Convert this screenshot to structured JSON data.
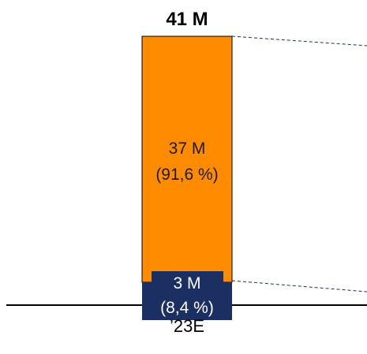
{
  "chart_data": {
    "type": "bar",
    "stacked": true,
    "categories": [
      "’23E"
    ],
    "series": [
      {
        "values": [
          3
        ],
        "value_label": "3 M",
        "share_label": "(8,4 %)",
        "color": "#1b2f63",
        "text_color": "#ffffff"
      },
      {
        "values": [
          37
        ],
        "value_label": "37 M",
        "share_label": "(91,6 %)",
        "color": "#ff8c00",
        "text_color": "#1a1a1a"
      }
    ],
    "totals": [
      {
        "value": 41,
        "label": "41 M"
      }
    ],
    "ylim": [
      0,
      41
    ],
    "grid": false,
    "legend": "none",
    "connector_lines": "dashed"
  }
}
